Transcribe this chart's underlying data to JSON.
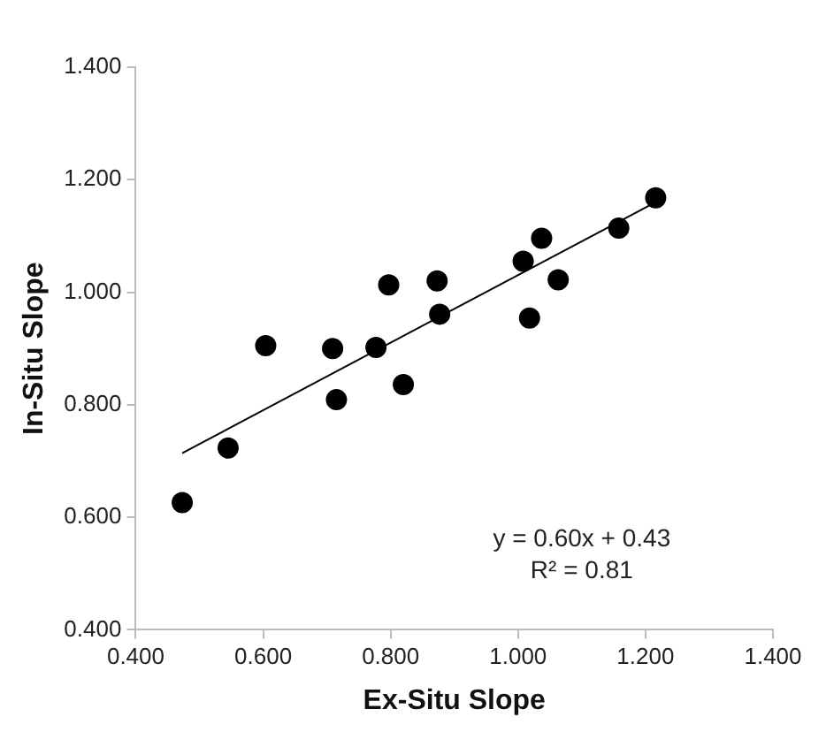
{
  "chart_data": {
    "type": "scatter",
    "xlabel": "Ex-Situ Slope",
    "ylabel": "In-Situ Slope",
    "xlim": [
      0.4,
      1.4
    ],
    "xticks": [
      {
        "value": 0.4,
        "label": "0.400"
      },
      {
        "value": 0.6,
        "label": "0.600"
      },
      {
        "value": 0.8,
        "label": "0.800"
      },
      {
        "value": 1.0,
        "label": "1.000"
      },
      {
        "value": 1.2,
        "label": "1.200"
      },
      {
        "value": 1.4,
        "label": "1.400"
      }
    ],
    "ylim": [
      0.4,
      1.4
    ],
    "yticks": [
      {
        "value": 0.4,
        "label": "0.400"
      },
      {
        "value": 0.6,
        "label": "0.600"
      },
      {
        "value": 0.8,
        "label": "0.800"
      },
      {
        "value": 1.0,
        "label": "1.000"
      },
      {
        "value": 1.2,
        "label": "1.200"
      },
      {
        "value": 1.4,
        "label": "1.400"
      }
    ],
    "grid": false,
    "legend": false,
    "marker": "circle",
    "series": [
      {
        "color": "#000000",
        "x": [
          0.473,
          0.545,
          0.604,
          0.709,
          0.715,
          0.777,
          0.797,
          0.82,
          0.873,
          0.877,
          1.008,
          1.018,
          1.037,
          1.063,
          1.158,
          1.216
        ],
        "values": [
          0.626,
          0.723,
          0.905,
          0.9,
          0.809,
          0.902,
          1.013,
          0.836,
          1.02,
          0.961,
          1.055,
          0.954,
          1.096,
          1.022,
          1.114,
          1.168
        ]
      },
      {
        "type": "line",
        "color": "#000000",
        "marker": "none",
        "x": [
          0.473,
          1.216
        ],
        "values": [
          0.714,
          1.16
        ]
      }
    ],
    "annotations": [
      "y = 0.60x + 0.43",
      "R² = 0.81"
    ]
  }
}
